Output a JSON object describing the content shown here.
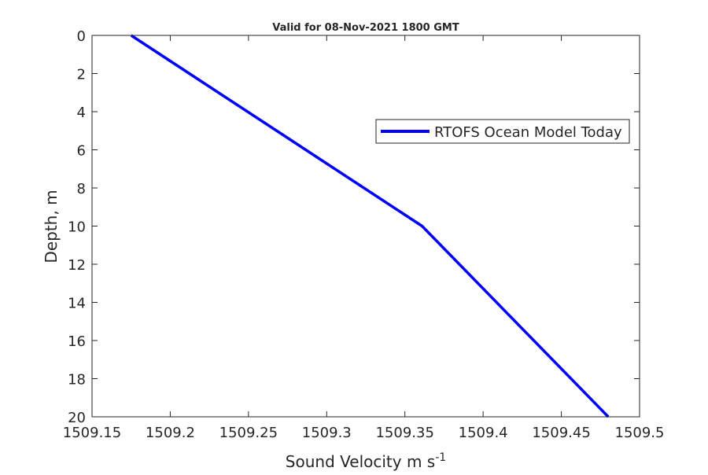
{
  "chart_data": {
    "type": "line",
    "title": "Valid for 08-Nov-2021 1800 GMT",
    "xlabel": "Sound Velocity m s",
    "xlabel_superscript": "-1",
    "ylabel": "Depth, m",
    "xlim": [
      1509.15,
      1509.5
    ],
    "ylim": [
      0,
      20
    ],
    "y_reversed": true,
    "xticks": [
      "1509.15",
      "1509.2",
      "1509.25",
      "1509.3",
      "1509.35",
      "1509.4",
      "1509.45",
      "1509.5"
    ],
    "yticks": [
      "0",
      "2",
      "4",
      "6",
      "8",
      "10",
      "12",
      "14",
      "16",
      "18",
      "20"
    ],
    "grid": false,
    "legend_position": "top-right",
    "series": [
      {
        "name": "RTOFS Ocean Model Today",
        "color": "#0000ff",
        "x": [
          1509.175,
          1509.361,
          1509.48
        ],
        "y": [
          0,
          10,
          20
        ]
      }
    ]
  }
}
